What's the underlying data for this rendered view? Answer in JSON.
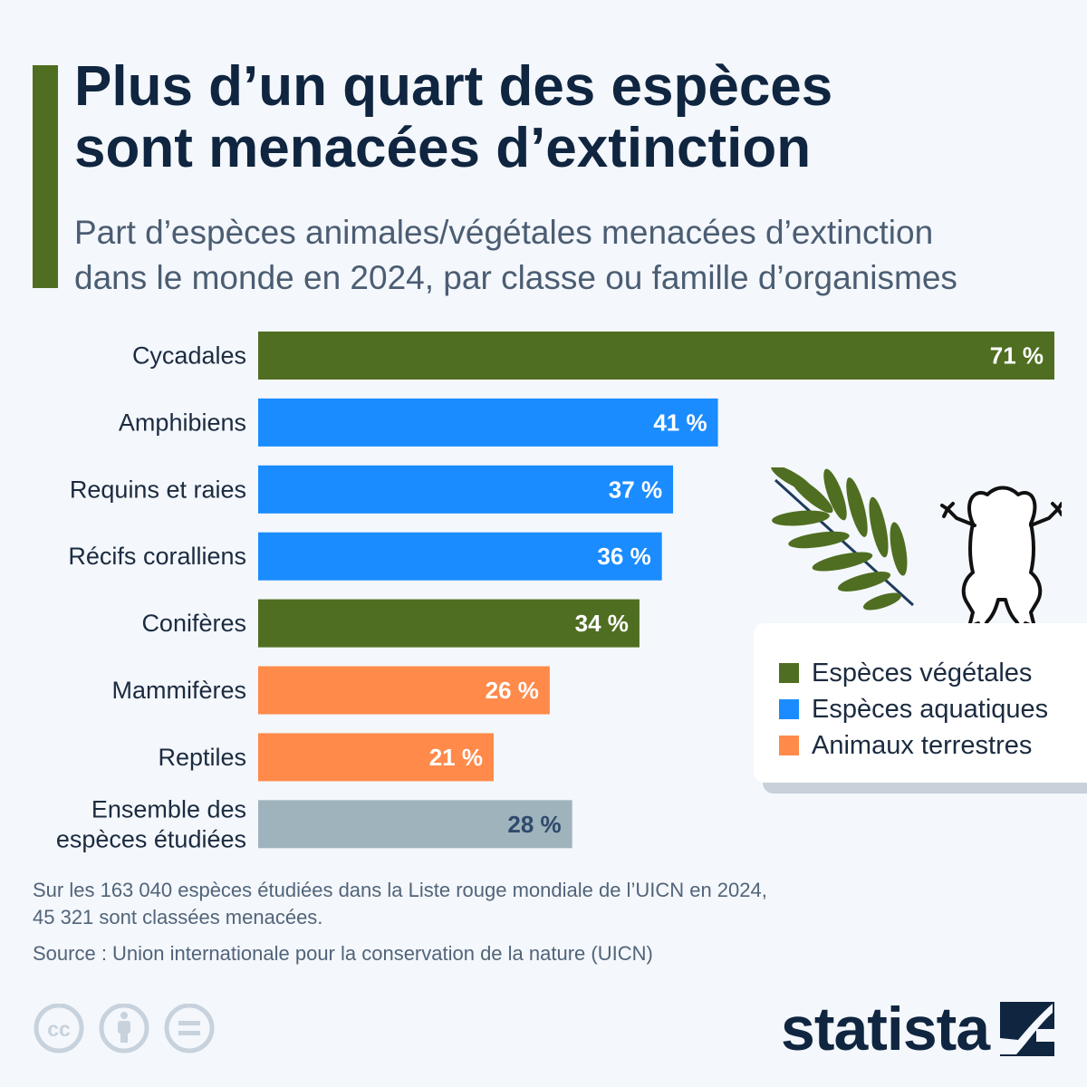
{
  "header": {
    "title_line1": "Plus d’un quart des espèces",
    "title_line2": "sont menacées d’extinction",
    "subtitle_line1": "Part d’espèces animales/végétales menacées d’extinction",
    "subtitle_line2": "dans le monde en 2024, par classe ou famille d’organismes"
  },
  "colors": {
    "accent": "#4f6e21",
    "vegetal": "#4f6e21",
    "aquatique": "#1a8cff",
    "terrestre": "#ff8a4a",
    "ensemble": "#9fb3bd"
  },
  "chart_data": {
    "type": "bar",
    "orientation": "horizontal",
    "title": "Plus d’un quart des espèces sont menacées d’extinction",
    "subtitle": "Part d’espèces animales/végétales menacées d’extinction dans le monde en 2024, par classe ou famille d’organismes",
    "xlim": [
      0,
      71
    ],
    "grid": false,
    "legend_placement": "right",
    "bars": [
      {
        "label_lines": [
          "Cycadales"
        ],
        "value": 71,
        "value_label": "71 %",
        "group": "vegetal"
      },
      {
        "label_lines": [
          "Amphibiens"
        ],
        "value": 41,
        "value_label": "41 %",
        "group": "aquatique"
      },
      {
        "label_lines": [
          "Requins et raies"
        ],
        "value": 37,
        "value_label": "37 %",
        "group": "aquatique"
      },
      {
        "label_lines": [
          "Récifs coralliens"
        ],
        "value": 36,
        "value_label": "36 %",
        "group": "aquatique"
      },
      {
        "label_lines": [
          "Conifères"
        ],
        "value": 34,
        "value_label": "34 %",
        "group": "vegetal"
      },
      {
        "label_lines": [
          "Mammifères"
        ],
        "value": 26,
        "value_label": "26 %",
        "group": "terrestre"
      },
      {
        "label_lines": [
          "Reptiles"
        ],
        "value": 21,
        "value_label": "21 %",
        "group": "terrestre"
      },
      {
        "label_lines": [
          "Ensemble des",
          "espèces étudiées"
        ],
        "value": 28,
        "value_label": "28 %",
        "group": "ensemble"
      }
    ],
    "legend": [
      {
        "label": "Espèces végétales",
        "group": "vegetal"
      },
      {
        "label": "Espèces aquatiques",
        "group": "aquatique"
      },
      {
        "label": "Animaux terrestres",
        "group": "terrestre"
      }
    ]
  },
  "footer": {
    "note_line1": "Sur les 163 040 espèces étudiées dans la Liste rouge mondiale de l’UICN en 2024,",
    "note_line2": "45 321 sont classées menacées.",
    "source": "Source : Union internationale pour la conservation de la nature (UICN)",
    "brand": "statista",
    "license_icons": [
      "cc-icon",
      "attribution-icon",
      "no-derivatives-icon"
    ]
  },
  "illustrations": [
    "leaf-icon",
    "frog-icon"
  ]
}
